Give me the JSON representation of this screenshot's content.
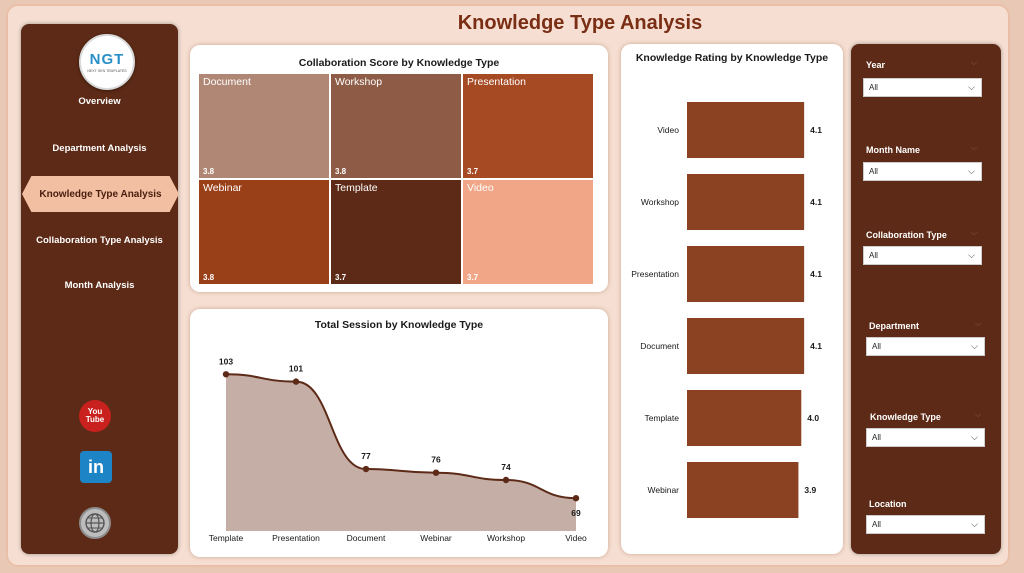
{
  "page": {
    "title": "Knowledge Type Analysis"
  },
  "logo": {
    "main": "NGT",
    "sub": "NEXT GEN TEMPLATES"
  },
  "nav": {
    "items": [
      {
        "label": "Overview"
      },
      {
        "label": "Department Analysis"
      },
      {
        "label": "Knowledge Type Analysis",
        "active": true
      },
      {
        "label": "Collaboration Type Analysis"
      },
      {
        "label": "Month Analysis"
      }
    ]
  },
  "social": {
    "youtube": "You Tube",
    "linkedin": "in"
  },
  "filters": [
    {
      "label": "Year",
      "value": "All"
    },
    {
      "label": "Month Name",
      "value": "All"
    },
    {
      "label": "Collaboration Type",
      "value": "All"
    },
    {
      "label": "Department",
      "value": "All"
    },
    {
      "label": "Knowledge Type",
      "value": "All"
    },
    {
      "label": "Location",
      "value": "All"
    }
  ],
  "colors": {
    "sidebar": "#5c2a16",
    "accent": "#8b4223",
    "page_bg": "#f6dfd2",
    "active_nav": "#f2bfa3"
  },
  "chart_data": [
    {
      "type": "heatmap",
      "title": "Collaboration Score by Knowledge Type",
      "categories": [
        "Document",
        "Workshop",
        "Presentation",
        "Webinar",
        "Template",
        "Video"
      ],
      "values": [
        3.8,
        3.8,
        3.7,
        3.8,
        3.7,
        3.7
      ],
      "display_values": [
        "3.8",
        "3.8",
        "3.7",
        "3.8",
        "3.7",
        "3.7"
      ],
      "colors": [
        "#b08774",
        "#8e5c46",
        "#a64a24",
        "#9a4019",
        "#5c2a16",
        "#f0a687"
      ]
    },
    {
      "type": "area",
      "title": "Total Session by Knowledge Type",
      "categories": [
        "Template",
        "Presentation",
        "Document",
        "Webinar",
        "Workshop",
        "Video"
      ],
      "values": [
        103,
        101,
        77,
        76,
        74,
        69
      ],
      "ylim": [
        60,
        105
      ],
      "grid": false,
      "colors": {
        "fill": "#c4aea5",
        "line": "#5c2a16"
      }
    },
    {
      "type": "bar",
      "orientation": "horizontal",
      "title": "Knowledge Rating by Knowledge Type",
      "categories": [
        "Video",
        "Workshop",
        "Presentation",
        "Document",
        "Template",
        "Webinar"
      ],
      "values": [
        4.1,
        4.1,
        4.1,
        4.1,
        4.0,
        3.9
      ],
      "display_values": [
        "4.1",
        "4.1",
        "4.1",
        "4.1",
        "4.0",
        "3.9"
      ],
      "xlim": [
        0,
        4.2
      ],
      "grid": false,
      "colors": {
        "bar": "#8b4223"
      }
    }
  ]
}
